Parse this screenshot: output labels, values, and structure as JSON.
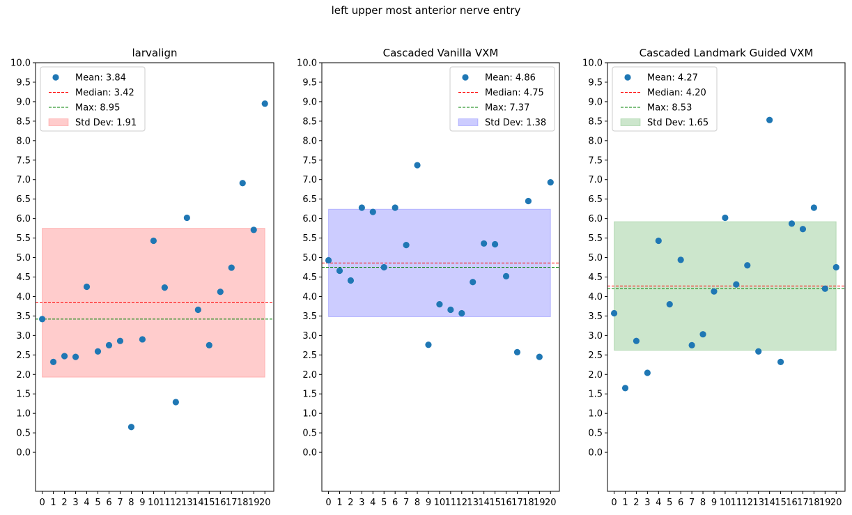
{
  "figure_title": "left upper most anterior nerve entry",
  "chart_data": [
    {
      "type": "scatter",
      "title": "larvalign",
      "xlabel": "",
      "ylabel": "",
      "x": [
        0,
        1,
        2,
        3,
        4,
        5,
        6,
        7,
        8,
        9,
        10,
        11,
        12,
        13,
        14,
        15,
        16,
        17,
        18,
        19,
        20
      ],
      "x_tick_labels": [
        "0",
        "1",
        "2",
        "3",
        "4",
        "5",
        "6",
        "7",
        "8",
        "9",
        "10",
        "11",
        "12",
        "13",
        "14",
        "15",
        "16",
        "17",
        "18",
        "19",
        "20"
      ],
      "y": [
        3.42,
        2.32,
        2.47,
        2.45,
        4.25,
        2.59,
        2.75,
        2.86,
        0.65,
        2.9,
        5.43,
        4.23,
        1.29,
        6.02,
        3.66,
        2.75,
        4.12,
        4.74,
        6.91,
        5.71,
        8.95
      ],
      "y_ticks": [
        "0.0",
        "0.5",
        "1.0",
        "1.5",
        "2.0",
        "2.5",
        "3.0",
        "3.5",
        "4.0",
        "4.5",
        "5.0",
        "5.5",
        "6.0",
        "6.5",
        "7.0",
        "7.5",
        "8.0",
        "8.5",
        "9.0",
        "9.5",
        "10.0"
      ],
      "ylim": [
        -1.0,
        10.0
      ],
      "xlim": [
        -0.6,
        20.8
      ],
      "mean": 3.84,
      "median": 3.42,
      "max": 8.95,
      "std": 1.91,
      "band_color": "#ff0000",
      "legend_position": "upper-left",
      "legend": {
        "mean": "Mean: 3.84",
        "median": "Median: 3.42",
        "max": "Max: 8.95",
        "std": "Std Dev: 1.91"
      }
    },
    {
      "type": "scatter",
      "title": "Cascaded Vanilla VXM",
      "xlabel": "",
      "ylabel": "",
      "x": [
        0,
        1,
        2,
        3,
        4,
        5,
        6,
        7,
        8,
        9,
        10,
        11,
        12,
        13,
        14,
        15,
        16,
        17,
        18,
        19,
        20
      ],
      "x_tick_labels": [
        "0",
        "1",
        "2",
        "3",
        "4",
        "5",
        "6",
        "7",
        "8",
        "9",
        "10",
        "11",
        "12",
        "13",
        "14",
        "15",
        "16",
        "17",
        "18",
        "19",
        "20"
      ],
      "y": [
        4.93,
        4.66,
        4.41,
        6.28,
        6.17,
        4.75,
        6.28,
        5.32,
        7.37,
        2.76,
        3.8,
        3.66,
        3.57,
        4.37,
        5.36,
        5.34,
        4.52,
        2.57,
        6.45,
        2.45,
        6.93
      ],
      "y_ticks": [
        "0.0",
        "0.5",
        "1.0",
        "1.5",
        "2.0",
        "2.5",
        "3.0",
        "3.5",
        "4.0",
        "4.5",
        "5.0",
        "5.5",
        "6.0",
        "6.5",
        "7.0",
        "7.5",
        "8.0",
        "8.5",
        "9.0",
        "9.5",
        "10.0"
      ],
      "ylim": [
        -1.0,
        10.0
      ],
      "xlim": [
        -0.6,
        20.8
      ],
      "mean": 4.86,
      "median": 4.75,
      "max": 7.37,
      "std": 1.38,
      "band_color": "#0000ff",
      "legend_position": "upper-right",
      "legend": {
        "mean": "Mean: 4.86",
        "median": "Median: 4.75",
        "max": "Max: 7.37",
        "std": "Std Dev: 1.38"
      }
    },
    {
      "type": "scatter",
      "title": "Cascaded Landmark Guided VXM",
      "xlabel": "",
      "ylabel": "",
      "x": [
        0,
        1,
        2,
        3,
        4,
        5,
        6,
        7,
        8,
        9,
        10,
        11,
        12,
        13,
        14,
        15,
        16,
        17,
        18,
        19,
        20
      ],
      "x_tick_labels": [
        "0",
        "1",
        "2",
        "3",
        "4",
        "5",
        "6",
        "7",
        "8",
        "9",
        "10",
        "11",
        "12",
        "13",
        "14",
        "15",
        "16",
        "17",
        "18",
        "19",
        "20"
      ],
      "y": [
        3.57,
        1.65,
        2.86,
        2.04,
        5.43,
        3.8,
        4.94,
        2.75,
        3.03,
        4.13,
        6.02,
        4.31,
        4.8,
        2.59,
        8.53,
        2.32,
        5.87,
        5.73,
        6.28,
        4.2,
        4.75
      ],
      "y_ticks": [
        "0.0",
        "0.5",
        "1.0",
        "1.5",
        "2.0",
        "2.5",
        "3.0",
        "3.5",
        "4.0",
        "4.5",
        "5.0",
        "5.5",
        "6.0",
        "6.5",
        "7.0",
        "7.5",
        "8.0",
        "8.5",
        "9.0",
        "9.5",
        "10.0"
      ],
      "ylim": [
        -1.0,
        10.0
      ],
      "xlim": [
        -0.6,
        20.8
      ],
      "mean": 4.27,
      "median": 4.2,
      "max": 8.53,
      "std": 1.65,
      "band_color": "#008000",
      "legend_position": "upper-left",
      "legend": {
        "mean": "Mean: 4.27",
        "median": "Median: 4.20",
        "max": "Max: 8.53",
        "std": "Std Dev: 1.65"
      }
    }
  ]
}
